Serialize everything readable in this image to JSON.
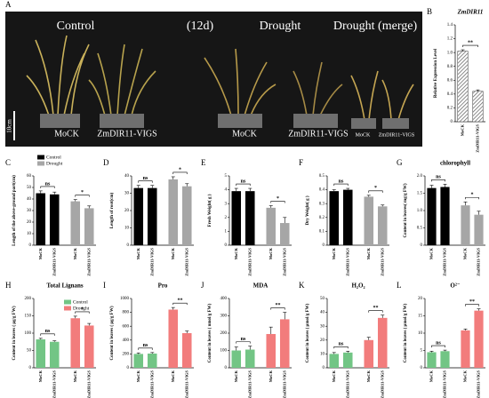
{
  "photo": {
    "panel": "A",
    "labels": [
      "Control",
      "(12d)",
      "Drought",
      "Drought (merge)",
      "MoCK",
      "ZmDIR11-VIGS",
      "MoCK",
      "ZmDIR11-VIGS",
      "MoCK",
      "ZmDIR11-VIGS",
      "10cm"
    ]
  },
  "chart_data": [
    {
      "type": "bar",
      "panel": "B",
      "title": "ZmDIR11",
      "ylabel": "Relative Expression Level",
      "categories": [
        "MoCK",
        "ZmDIR11-VIGS"
      ],
      "series": [
        {
          "color": "#8c8c8c",
          "values": [
            1.02,
            0.44
          ],
          "errors": [
            0.02,
            0.02
          ]
        }
      ],
      "ylim": [
        0,
        1.4
      ],
      "yticks": [
        0,
        {
          "value": 0.2,
          "label": "0.2"
        },
        {
          "value": 0.4,
          "label": "0.4"
        },
        {
          "value": 0.6,
          "label": "0.6"
        },
        {
          "value": 0.8,
          "label": "0.8"
        },
        {
          "value": 1,
          "label": "1.0"
        },
        {
          "value": 1.2,
          "label": "1.2"
        },
        {
          "value": 1.4,
          "label": "1.4"
        }
      ],
      "hatch": true,
      "annotations": [
        "**"
      ]
    },
    {
      "type": "bar",
      "panel": "C",
      "ylabel": "Length of the above-ground part(cm)",
      "categories": [
        "MoCK",
        "ZmDIR11-VIGS",
        "MoCK",
        "ZmDIR11-VIGS"
      ],
      "series": [
        {
          "name": "Control",
          "color": "#000000",
          "values": [
            45,
            44,
            null,
            null
          ],
          "errors": [
            2,
            2,
            null,
            null
          ]
        },
        {
          "name": "Drought",
          "color": "#a6a6a6",
          "values": [
            null,
            null,
            38,
            32
          ],
          "errors": [
            null,
            null,
            1.5,
            2
          ]
        }
      ],
      "legend": "top-left",
      "ylim": [
        0,
        60
      ],
      "yticks": [
        0,
        10,
        20,
        30,
        40,
        50,
        60
      ],
      "annotations": [
        "ns",
        "*"
      ]
    },
    {
      "type": "bar",
      "panel": "D",
      "ylabel": "Length of root(cm)",
      "categories": [
        "MoCK",
        "ZmDIR11-VIGS",
        "MoCK",
        "ZmDIR11-VIGS"
      ],
      "series": [
        {
          "color": "#000000",
          "values": [
            33,
            33,
            null,
            null
          ],
          "errors": [
            1.5,
            1.5,
            null,
            null
          ]
        },
        {
          "color": "#a6a6a6",
          "values": [
            null,
            null,
            38,
            34
          ],
          "errors": [
            null,
            null,
            1.5,
            1.5
          ]
        }
      ],
      "ylim": [
        0,
        40
      ],
      "yticks": [
        0,
        10,
        20,
        30,
        40
      ],
      "annotations": [
        "ns",
        "*"
      ]
    },
    {
      "type": "bar",
      "panel": "E",
      "ylabel": "Fresh Weight( g )",
      "categories": [
        "MoCK",
        "ZmDIR11-VIGS",
        "MoCK",
        "ZmDIR11-VIGS"
      ],
      "series": [
        {
          "color": "#000000",
          "values": [
            3.9,
            3.9,
            null,
            null
          ],
          "errors": [
            0.2,
            0.2,
            null,
            null
          ]
        },
        {
          "color": "#a6a6a6",
          "values": [
            null,
            null,
            2.7,
            1.6
          ],
          "errors": [
            null,
            null,
            0.15,
            0.4
          ]
        }
      ],
      "ylim": [
        0,
        5
      ],
      "yticks": [
        0,
        1,
        2,
        3,
        4,
        5
      ],
      "annotations": [
        "ns",
        "*"
      ]
    },
    {
      "type": "bar",
      "panel": "F",
      "ylabel": "Dry Weight( g )",
      "categories": [
        "MoCK",
        "ZmDIR11-VIGS",
        "MoCK",
        "ZmDIR11-VIGS"
      ],
      "series": [
        {
          "color": "#000000",
          "values": [
            0.39,
            0.4,
            null,
            null
          ],
          "errors": [
            0.01,
            0.01,
            null,
            null
          ]
        },
        {
          "color": "#a6a6a6",
          "values": [
            null,
            null,
            0.35,
            0.28
          ],
          "errors": [
            null,
            null,
            0.01,
            0.01
          ]
        }
      ],
      "ylim": [
        0,
        0.5
      ],
      "yticks": [
        0,
        {
          "value": 0.1,
          "label": "0.1"
        },
        {
          "value": 0.2,
          "label": "0.2"
        },
        {
          "value": 0.3,
          "label": "0.3"
        },
        {
          "value": 0.4,
          "label": "0.4"
        },
        {
          "value": 0.5,
          "label": "0.5"
        }
      ],
      "annotations": [
        "ns",
        "*"
      ]
    },
    {
      "type": "bar",
      "panel": "G",
      "title": "chlorophyll",
      "ylabel": "Content in leaves( mg/g FW)",
      "categories": [
        "MoCK",
        "ZmDIR11-VIGS",
        "MoCK",
        "ZmDIR11-VIGS"
      ],
      "series": [
        {
          "color": "#000000",
          "values": [
            1.65,
            1.68,
            null,
            null
          ],
          "errors": [
            0.08,
            0.08,
            null,
            null
          ]
        },
        {
          "color": "#a6a6a6",
          "values": [
            null,
            null,
            1.15,
            0.88
          ],
          "errors": [
            null,
            null,
            0.1,
            0.1
          ]
        }
      ],
      "ylim": [
        0,
        2
      ],
      "yticks": [
        0,
        {
          "value": 0.5,
          "label": "0.5"
        },
        {
          "value": 1,
          "label": "1.0"
        },
        {
          "value": 1.5,
          "label": "1.5"
        },
        {
          "value": 2,
          "label": "2.0"
        }
      ],
      "annotations": [
        "ns",
        "*"
      ]
    },
    {
      "type": "bar",
      "panel": "H",
      "title": "Total Lignans",
      "ylabel": "Content in leaves ( μg/g FW)",
      "categories": [
        "MoCK",
        "ZmDIR11-VIGS",
        "MoCK",
        "ZmDIR11-VIGS"
      ],
      "series": [
        {
          "name": "Control",
          "color": "#72c585",
          "values": [
            82,
            75,
            null,
            null
          ],
          "errors": [
            3,
            3,
            null,
            null
          ]
        },
        {
          "name": "Drought",
          "color": "#f27c7c",
          "values": [
            null,
            null,
            143,
            122
          ],
          "errors": [
            null,
            null,
            6,
            6
          ]
        }
      ],
      "legend": "top-right",
      "ylim": [
        0,
        200
      ],
      "yticks": [
        0,
        50,
        100,
        150,
        200
      ],
      "annotations": [
        "ns",
        "*"
      ]
    },
    {
      "type": "bar",
      "panel": "I",
      "title": "Pro",
      "ylabel": "Content in leaves ( μg/g FW)",
      "categories": [
        "MoCK",
        "ZmDIR11-VIGS",
        "MoCK",
        "ZmDIR11-VIGS"
      ],
      "series": [
        {
          "color": "#72c585",
          "values": [
            200,
            205,
            null,
            null
          ],
          "errors": [
            15,
            15,
            null,
            null
          ]
        },
        {
          "color": "#f27c7c",
          "values": [
            null,
            null,
            840,
            500
          ],
          "errors": [
            null,
            null,
            30,
            30
          ]
        }
      ],
      "ylim": [
        0,
        1000
      ],
      "yticks": [
        0,
        200,
        400,
        600,
        800,
        1000
      ],
      "annotations": [
        "ns",
        "**"
      ]
    },
    {
      "type": "bar",
      "panel": "J",
      "title": "MDA",
      "ylabel": "Content in leaves ( nmol/g FW)",
      "categories": [
        "MoCK",
        "ZmDIR11-VIGS",
        "MoCK",
        "ZmDIR11-VIGS"
      ],
      "series": [
        {
          "color": "#72c585",
          "values": [
            100,
            105,
            null,
            null
          ],
          "errors": [
            20,
            20,
            null,
            null
          ]
        },
        {
          "color": "#f27c7c",
          "values": [
            null,
            null,
            195,
            280
          ],
          "errors": [
            null,
            null,
            40,
            40
          ]
        }
      ],
      "ylim": [
        0,
        400
      ],
      "yticks": [
        0,
        100,
        200,
        300,
        400
      ],
      "annotations": [
        "ns",
        "**"
      ]
    },
    {
      "type": "bar",
      "panel": "K",
      "title": "H₂O₂",
      "ylabel": "Content in leaves ( μmol/g FW)",
      "categories": [
        "MoCK",
        "ZmDIR11-VIGS",
        "MoCK",
        "ZmDIR11-VIGS"
      ],
      "series": [
        {
          "color": "#72c585",
          "values": [
            10,
            11,
            null,
            null
          ],
          "errors": [
            1,
            1,
            null,
            null
          ]
        },
        {
          "color": "#f27c7c",
          "values": [
            null,
            null,
            20,
            36
          ],
          "errors": [
            null,
            null,
            2,
            2
          ]
        }
      ],
      "ylim": [
        0,
        50
      ],
      "yticks": [
        0,
        10,
        20,
        30,
        40,
        50
      ],
      "annotations": [
        "ns",
        "**"
      ]
    },
    {
      "type": "bar",
      "panel": "L",
      "title": "O²⁻",
      "ylabel": "Content in leaves ( μmol/g FW)",
      "categories": [
        "MoCK",
        "ZmDIR11-VIGS",
        "MoCK",
        "ZmDIR11-VIGS"
      ],
      "series": [
        {
          "color": "#72c585",
          "values": [
            4.5,
            4.8,
            null,
            null
          ],
          "errors": [
            0.3,
            0.3,
            null,
            null
          ]
        },
        {
          "color": "#f27c7c",
          "values": [
            null,
            null,
            10.8,
            16.5
          ],
          "errors": [
            null,
            null,
            0.4,
            0.5
          ]
        }
      ],
      "ylim": [
        0,
        20
      ],
      "yticks": [
        0,
        5,
        10,
        15,
        20
      ],
      "annotations": [
        "ns",
        "**"
      ]
    }
  ]
}
